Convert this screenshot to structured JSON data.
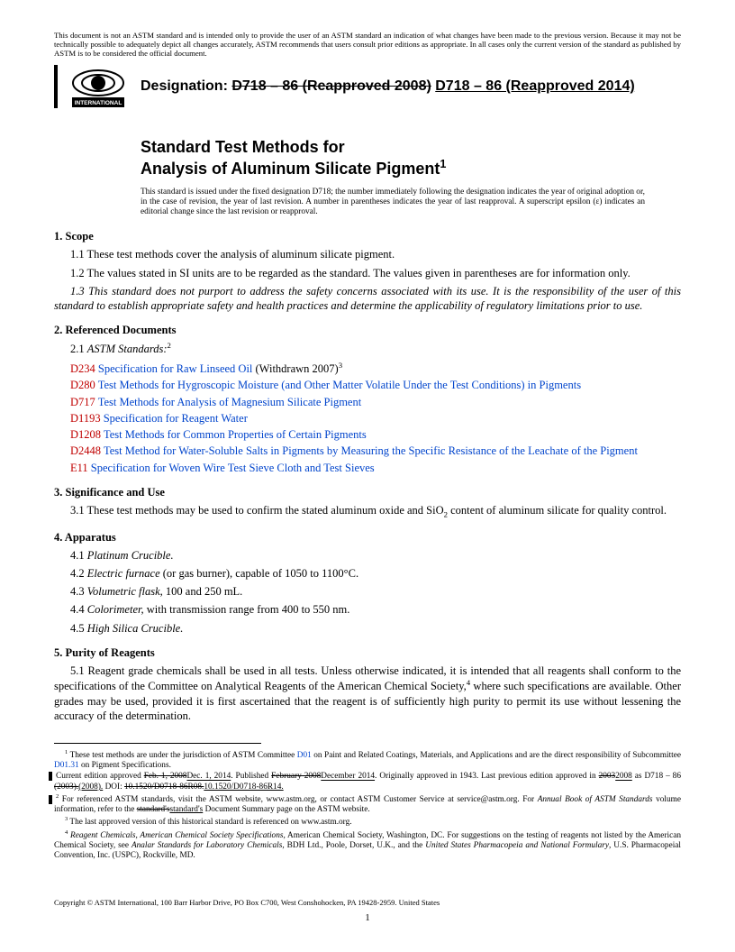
{
  "disclaimer": "This document is not an ASTM standard and is intended only to provide the user of an ASTM standard an indication of what changes have been made to the previous version. Because it may not be technically possible to adequately depict all changes accurately, ASTM recommends that users consult prior editions as appropriate. In all cases only the current version of the standard as published by ASTM is to be considered the official document.",
  "logo_label": "INTERNATIONAL",
  "designation_label": "Designation:",
  "designation_old": "D718 – 86 (Reapproved 2008)",
  "designation_new": "D718 – 86 (Reapproved 2014)",
  "title_line1": "Standard Test Methods for",
  "title_line2": "Analysis of Aluminum Silicate Pigment",
  "title_sup": "1",
  "issue_note": "This standard is issued under the fixed designation D718; the number immediately following the designation indicates the year of original adoption or, in the case of revision, the year of last revision. A number in parentheses indicates the year of last reapproval. A superscript epsilon (ε) indicates an editorial change since the last revision or reapproval.",
  "sec1_head": "1. Scope",
  "sec1_1": "1.1 These test methods cover the analysis of aluminum silicate pigment.",
  "sec1_2": "1.2 The values stated in SI units are to be regarded as the standard. The values given in parentheses are for information only.",
  "sec1_3": "1.3 This standard does not purport to address the safety concerns associated with its use. It is the responsibility of the user of this standard to establish appropriate safety and health practices and determine the applicability of regulatory limitations prior to use.",
  "sec2_head": "2. Referenced Documents",
  "sec2_1": "2.1 ",
  "sec2_1_ital": "ASTM Standards:",
  "sec2_1_sup": "2",
  "refs": [
    {
      "code": "D234",
      "title": "Specification for Raw Linseed Oil",
      "tail": " (Withdrawn 2007)",
      "tailsup": "3"
    },
    {
      "code": "D280",
      "title": "Test Methods for Hygroscopic Moisture (and Other Matter Volatile Under the Test Conditions) in Pigments",
      "tail": "",
      "tailsup": ""
    },
    {
      "code": "D717",
      "title": "Test Methods for Analysis of Magnesium Silicate Pigment",
      "tail": "",
      "tailsup": ""
    },
    {
      "code": "D1193",
      "title": "Specification for Reagent Water",
      "tail": "",
      "tailsup": ""
    },
    {
      "code": "D1208",
      "title": "Test Methods for Common Properties of Certain Pigments",
      "tail": "",
      "tailsup": ""
    },
    {
      "code": "D2448",
      "title": "Test Method for Water-Soluble Salts in Pigments by Measuring the Specific Resistance of the Leachate of the Pigment",
      "tail": "",
      "tailsup": ""
    },
    {
      "code": "E11",
      "title": "Specification for Woven Wire Test Sieve Cloth and Test Sieves",
      "tail": "",
      "tailsup": ""
    }
  ],
  "sec3_head": "3. Significance and Use",
  "sec3_1a": "3.1 These test methods may be used to confirm the stated aluminum oxide and SiO",
  "sec3_1b": " content of aluminum silicate for quality control.",
  "sec4_head": "4. Apparatus",
  "sec4_items": [
    {
      "n": "4.1 ",
      "ital": "Platinum Crucible.",
      "rest": ""
    },
    {
      "n": "4.2 ",
      "ital": "Electric furnace",
      "rest": " (or gas burner), capable of 1050 to 1100°C."
    },
    {
      "n": "4.3 ",
      "ital": "Volumetric flask,",
      "rest": " 100 and 250 mL."
    },
    {
      "n": "4.4 ",
      "ital": "Colorimeter,",
      "rest": " with transmission range from 400 to 550 nm."
    },
    {
      "n": "4.5 ",
      "ital": "High Silica Crucible.",
      "rest": ""
    }
  ],
  "sec5_head": "5. Purity of Reagents",
  "sec5_1a": "5.1 Reagent grade chemicals shall be used in all tests. Unless otherwise indicated, it is intended that all reagents shall conform to the specifications of the Committee on Analytical Reagents of the American Chemical Society,",
  "sec5_1b": " where such specifications are available. Other grades may be used, provided it is first ascertained that the reagent is of sufficiently high purity to permit its use without lessening the accuracy of the determination.",
  "fn1": " These test methods are under the jurisdiction of ASTM Committee ",
  "fn1_link1": "D01",
  "fn1_mid": " on Paint and Related Coatings, Materials, and Applications and are the direct responsibility of Subcommittee ",
  "fn1_link2": "D01.31",
  "fn1_end": " on Pigment Specifications.",
  "fn1b_a": "Current edition approved ",
  "fn1b_s1": "Feb. 1, 2008",
  "fn1b_u1": "Dec. 1, 2014",
  "fn1b_b": ". Published ",
  "fn1b_s2": "February 2008",
  "fn1b_u2": "December 2014",
  "fn1b_c": ". Originally approved in 1943. Last previous edition approved in ",
  "fn1b_s3": "2003",
  "fn1b_u3": "2008",
  "fn1b_d": " as D718 – 86 ",
  "fn1b_s4": "(2003).",
  "fn1b_u4": "(2008).",
  "fn1b_e": " DOI: ",
  "fn1b_s5": "10.1520/D0718-86R08.",
  "fn1b_u5": "10.1520/D0718-86R14.",
  "fn2": " For referenced ASTM standards, visit the ASTM website, www.astm.org, or contact ASTM Customer Service at service@astm.org. For ",
  "fn2_ital": "Annual Book of ASTM Standards",
  "fn2b": " volume information, refer to the ",
  "fn2_s": "standard's",
  "fn2_u": "standard's",
  "fn2c": " Document Summary page on the ASTM website.",
  "fn3": " The last approved version of this historical standard is referenced on www.astm.org.",
  "fn4_ital1": "Reagent Chemicals, American Chemical Society Specifications",
  "fn4_a": ", American Chemical Society, Washington, DC. For suggestions on the testing of reagents not listed by the American Chemical Society, see ",
  "fn4_ital2": "Analar Standards for Laboratory Chemicals",
  "fn4_b": ", BDH Ltd., Poole, Dorset, U.K., and the ",
  "fn4_ital3": "United States Pharmacopeia and National Formulary",
  "fn4_c": ", U.S. Pharmacopeial Convention, Inc. (USPC), Rockville, MD.",
  "copyright": "Copyright © ASTM International, 100 Barr Harbor Drive, PO Box C700, West Conshohocken, PA 19428-2959. United States",
  "pageno": "1"
}
